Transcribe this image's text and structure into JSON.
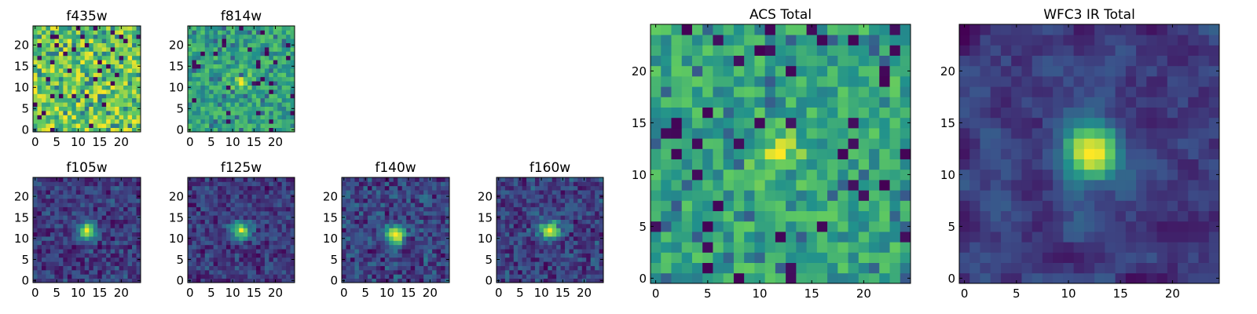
{
  "figure": {
    "description_tag": "multi-panel pixel image grid",
    "colormap": [
      "#440154",
      "#3b528b",
      "#21918c",
      "#5ec962",
      "#fde725"
    ]
  },
  "chart_data": [
    {
      "type": "heatmap",
      "title": "f435w",
      "grid_size": 25,
      "xticks": [
        0,
        5,
        10,
        15,
        20
      ],
      "yticks": [
        0,
        5,
        10,
        15,
        20
      ],
      "xlim": [
        -0.5,
        24.5
      ],
      "ylim": [
        -0.5,
        24.5
      ],
      "profile": "noise_bright",
      "source_center": [
        12,
        12
      ],
      "source_peak": 0.0
    },
    {
      "type": "heatmap",
      "title": "f814w",
      "grid_size": 25,
      "xticks": [
        0,
        5,
        10,
        15,
        20
      ],
      "yticks": [
        0,
        5,
        10,
        15,
        20
      ],
      "xlim": [
        -0.5,
        24.5
      ],
      "ylim": [
        -0.5,
        24.5
      ],
      "profile": "noise_bright",
      "source_center": [
        12,
        12
      ],
      "source_peak": 0.35
    },
    {
      "type": "heatmap",
      "title": "f105w",
      "grid_size": 25,
      "xticks": [
        0,
        5,
        10,
        15,
        20
      ],
      "yticks": [
        0,
        5,
        10,
        15,
        20
      ],
      "xlim": [
        -0.5,
        24.5
      ],
      "ylim": [
        -0.5,
        24.5
      ],
      "profile": "source",
      "source_center": [
        12,
        12
      ],
      "source_peak": 1.0
    },
    {
      "type": "heatmap",
      "title": "f125w",
      "grid_size": 25,
      "xticks": [
        0,
        5,
        10,
        15,
        20
      ],
      "yticks": [
        0,
        5,
        10,
        15,
        20
      ],
      "xlim": [
        -0.5,
        24.5
      ],
      "ylim": [
        -0.5,
        24.5
      ],
      "profile": "source",
      "source_center": [
        12,
        12
      ],
      "source_peak": 1.0
    },
    {
      "type": "heatmap",
      "title": "f140w",
      "grid_size": 25,
      "xticks": [
        0,
        5,
        10,
        15,
        20
      ],
      "yticks": [
        0,
        5,
        10,
        15,
        20
      ],
      "xlim": [
        -0.5,
        24.5
      ],
      "ylim": [
        -0.5,
        24.5
      ],
      "profile": "source",
      "source_center": [
        12,
        11
      ],
      "source_peak": 1.0
    },
    {
      "type": "heatmap",
      "title": "f160w",
      "grid_size": 25,
      "xticks": [
        0,
        5,
        10,
        15,
        20
      ],
      "yticks": [
        0,
        5,
        10,
        15,
        20
      ],
      "xlim": [
        -0.5,
        24.5
      ],
      "ylim": [
        -0.5,
        24.5
      ],
      "profile": "source",
      "source_center": [
        12,
        12
      ],
      "source_peak": 1.0
    },
    {
      "type": "heatmap",
      "title": "ACS Total",
      "grid_size": 25,
      "xticks": [
        0,
        5,
        10,
        15,
        20
      ],
      "yticks": [
        0,
        5,
        10,
        15,
        20
      ],
      "xlim": [
        -0.5,
        24.5
      ],
      "ylim": [
        -0.5,
        24.5
      ],
      "profile": "noise_bright",
      "source_center": [
        12,
        12
      ],
      "source_peak": 0.3
    },
    {
      "type": "heatmap",
      "title": "WFC3 IR Total",
      "grid_size": 25,
      "xticks": [
        0,
        5,
        10,
        15,
        20
      ],
      "yticks": [
        0,
        5,
        10,
        15,
        20
      ],
      "xlim": [
        -0.5,
        24.5
      ],
      "ylim": [
        -0.5,
        24.5
      ],
      "profile": "smooth_source",
      "source_center": [
        12,
        12
      ],
      "source_peak": 1.0
    }
  ]
}
